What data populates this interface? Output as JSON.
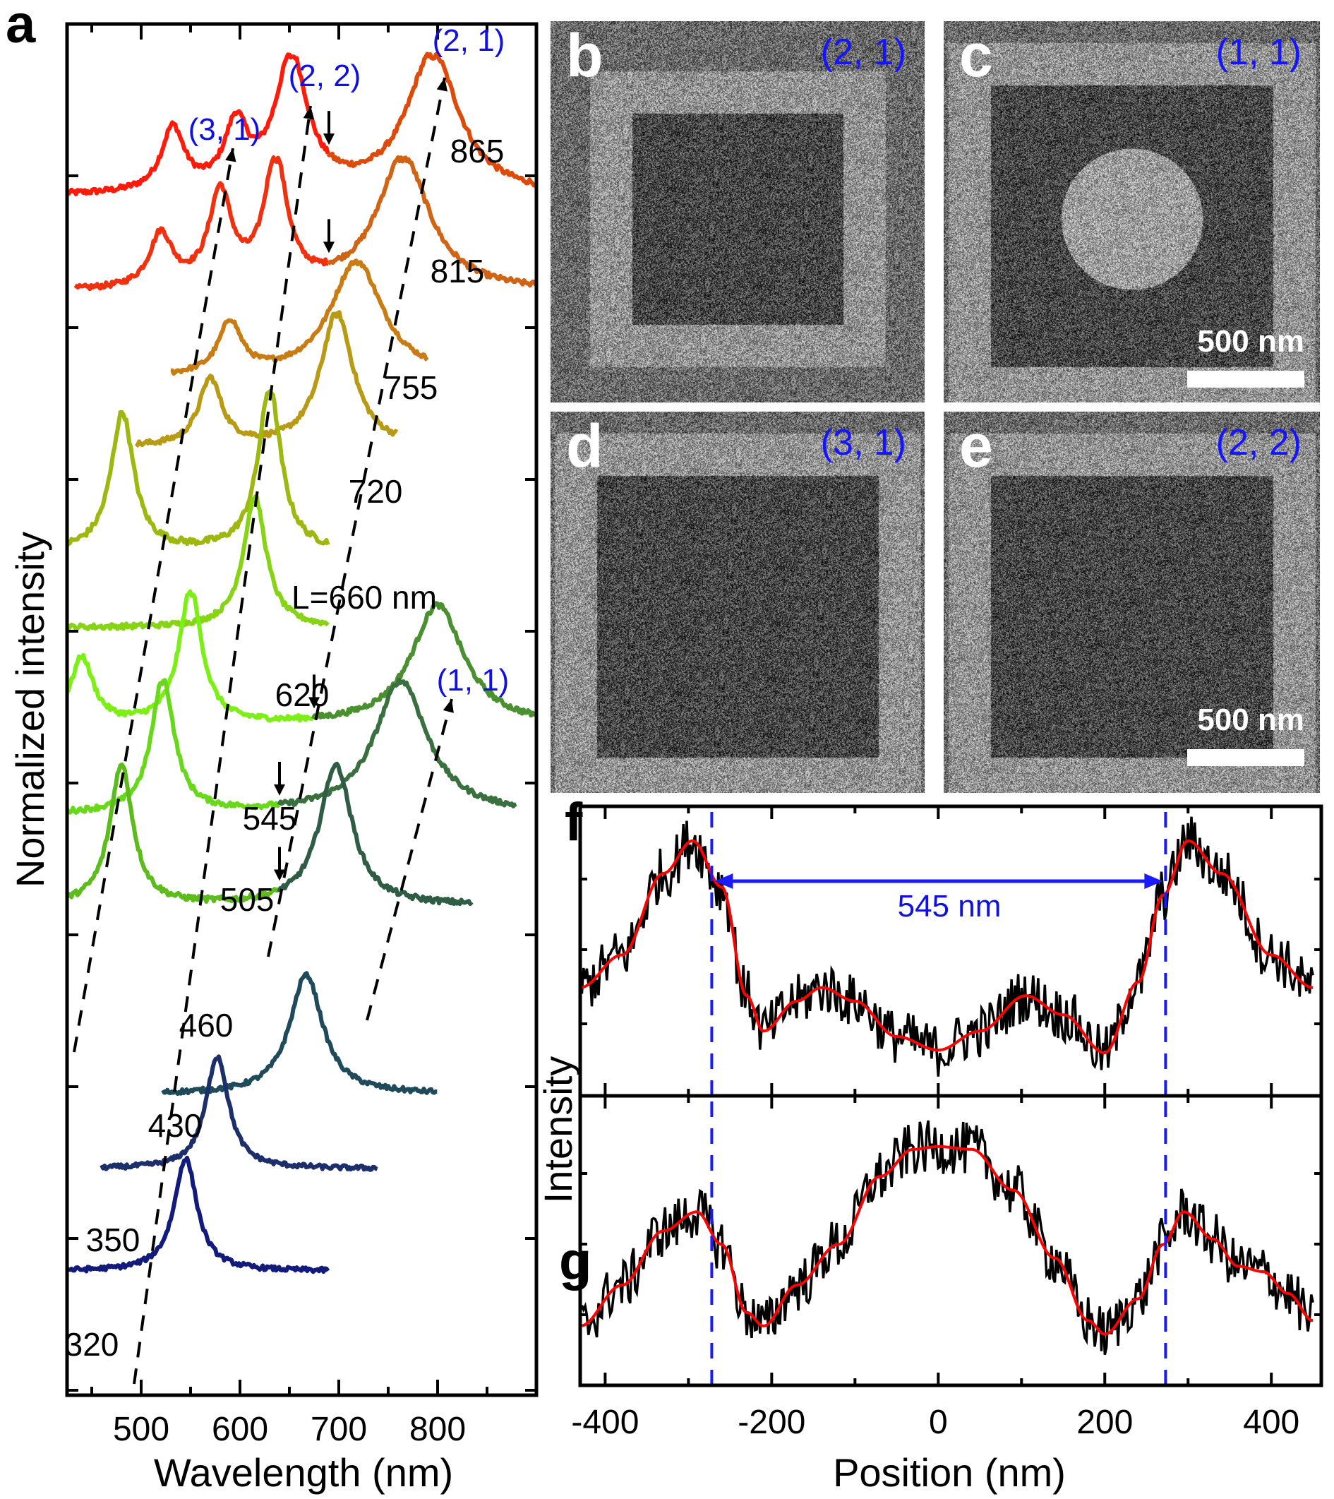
{
  "figure": {
    "panel_a": {
      "letter": "a",
      "xlabel": "Wavelength (nm)",
      "ylabel": "Normalized intensity",
      "xticks": [
        "500",
        "600",
        "700",
        "800"
      ],
      "mode_labels": [
        "(3, 1)",
        "(2, 2)",
        "(2, 1)",
        "(1, 1)"
      ]
    },
    "panel_b": {
      "letter": "b",
      "mode": "(2, 1)"
    },
    "panel_c": {
      "letter": "c",
      "mode": "(1, 1)",
      "scalebar": "500 nm"
    },
    "panel_d": {
      "letter": "d",
      "mode": "(3, 1)"
    },
    "panel_e": {
      "letter": "e",
      "mode": "(2, 2)",
      "scalebar": "500 nm"
    },
    "panel_fg": {
      "letters": [
        "f",
        "g"
      ],
      "xlabel": "Position (nm)",
      "ylabel": "Intensity",
      "xticks": [
        "-400",
        "-200",
        "0",
        "200",
        "400"
      ],
      "annotation": "545 nm"
    }
  },
  "chart_data": [
    {
      "type": "line",
      "panel": "a",
      "title": "",
      "xlabel": "Wavelength (nm)",
      "ylabel": "Normalized intensity",
      "xlim": [
        425,
        900
      ],
      "xticks": [
        500,
        600,
        700,
        800
      ],
      "yticks_labeled": false,
      "grid": false,
      "legend": "none",
      "series": [
        {
          "name": "865",
          "label": "865",
          "color": "#ff1a0a",
          "x_range": [
            425,
            900
          ],
          "peaks": [
            [
              532,
              0.45
            ],
            [
              596,
              0.45
            ],
            [
              652,
              0.95
            ],
            [
              795,
              1.0
            ]
          ],
          "split_at": 690,
          "color2": "#de4a0a",
          "arrow_at": 690
        },
        {
          "name": "815",
          "label": "815",
          "color": "#f0300e",
          "x_range": [
            433,
            900
          ],
          "peaks": [
            [
              520,
              0.4
            ],
            [
              580,
              0.7
            ],
            [
              636,
              0.95
            ],
            [
              765,
              1.0
            ]
          ],
          "split_at": 690,
          "color2": "#d06414",
          "arrow_at": 690
        },
        {
          "name": "755",
          "label": "755",
          "color": "#c97c14",
          "x_range": [
            530,
            790
          ],
          "peaks": [
            [
              590,
              0.45
            ],
            [
              718,
              1.0
            ]
          ]
        },
        {
          "name": "720",
          "label": "720",
          "color": "#b89a14",
          "x_range": [
            495,
            760
          ],
          "peaks": [
            [
              570,
              0.5
            ],
            [
              698,
              1.0
            ]
          ]
        },
        {
          "name": "660",
          "label": "L=660 nm",
          "color": "#9eb810",
          "x_range": [
            425,
            690
          ],
          "peaks": [
            [
              481,
              0.85
            ],
            [
              630,
              1.0
            ]
          ]
        },
        {
          "name": "620",
          "label": "620",
          "color": "#86d414",
          "x_range": [
            425,
            690
          ],
          "peaks": [
            [
              615,
              1.0
            ]
          ]
        },
        {
          "name": "545",
          "label": "545",
          "color": "#7cf014",
          "x_range": [
            425,
            900
          ],
          "peaks": [
            [
              440,
              0.5
            ],
            [
              550,
              1.0
            ],
            [
              800,
              0.9
            ]
          ],
          "split_at": 675,
          "color2": "#4a9030",
          "arrow_at": 675
        },
        {
          "name": "505",
          "label": "505",
          "color": "#68d81a",
          "x_range": [
            425,
            880
          ],
          "peaks": [
            [
              522,
              1.0
            ],
            [
              763,
              1.0
            ]
          ],
          "split_at": 640,
          "color2": "#3a7040",
          "arrow_at": 640
        },
        {
          "name": "460",
          "label": "460",
          "color": "#5cbc1c",
          "x_range": [
            425,
            835
          ],
          "peaks": [
            [
              480,
              1.0
            ],
            [
              697,
              1.0
            ]
          ],
          "split_at": 640,
          "color2": "#2f5c44",
          "arrow_at": 640
        },
        {
          "name": "430",
          "label": "430",
          "color": "#1f4a5a",
          "x_range": [
            522,
            800
          ],
          "peaks": [
            [
              667,
              1.0
            ]
          ]
        },
        {
          "name": "350",
          "label": "350",
          "color": "#1c2f6a",
          "x_range": [
            460,
            740
          ],
          "peaks": [
            [
              577,
              1.0
            ]
          ]
        },
        {
          "name": "320",
          "label": "320",
          "color": "#121a7c",
          "x_range": [
            425,
            690
          ],
          "peaks": [
            [
              545,
              1.0
            ]
          ]
        }
      ],
      "guide_lines": [
        {
          "mode": "(3, 1)",
          "style": "dashed-arrow"
        },
        {
          "mode": "(2, 2)",
          "style": "dashed-arrow"
        },
        {
          "mode": "(2, 1)",
          "style": "dashed-arrow"
        },
        {
          "mode": "(1, 1)",
          "style": "dashed-arrow"
        }
      ]
    },
    {
      "type": "line",
      "panel": "f",
      "xlabel": "Position (nm)",
      "ylabel": "Intensity",
      "xlim": [
        -430,
        460
      ],
      "xticks": [
        -400,
        -200,
        0,
        200,
        400
      ],
      "series": [
        {
          "name": "raw",
          "color": "#000000"
        },
        {
          "name": "fit",
          "color": "#ff0000",
          "points": [
            [
              -430,
              0.38
            ],
            [
              -380,
              0.5
            ],
            [
              -330,
              0.8
            ],
            [
              -295,
              0.92
            ],
            [
              -260,
              0.75
            ],
            [
              -230,
              0.35
            ],
            [
              -210,
              0.22
            ],
            [
              -170,
              0.33
            ],
            [
              -140,
              0.38
            ],
            [
              -100,
              0.33
            ],
            [
              -50,
              0.2
            ],
            [
              0,
              0.15
            ],
            [
              50,
              0.22
            ],
            [
              105,
              0.35
            ],
            [
              150,
              0.28
            ],
            [
              200,
              0.14
            ],
            [
              240,
              0.4
            ],
            [
              270,
              0.72
            ],
            [
              300,
              0.92
            ],
            [
              340,
              0.8
            ],
            [
              400,
              0.5
            ],
            [
              450,
              0.38
            ]
          ]
        }
      ],
      "vlines": [
        -272,
        273
      ],
      "annotation": {
        "text": "545 nm",
        "from": -272,
        "to": 273
      }
    },
    {
      "type": "line",
      "panel": "g",
      "xlabel": "Position (nm)",
      "ylabel": "Intensity",
      "xlim": [
        -430,
        460
      ],
      "xticks": [
        -400,
        -200,
        0,
        200,
        400
      ],
      "series": [
        {
          "name": "raw",
          "color": "#000000"
        },
        {
          "name": "fit",
          "color": "#ff0000",
          "points": [
            [
              -430,
              0.2
            ],
            [
              -380,
              0.35
            ],
            [
              -330,
              0.55
            ],
            [
              -290,
              0.62
            ],
            [
              -260,
              0.5
            ],
            [
              -230,
              0.25
            ],
            [
              -210,
              0.2
            ],
            [
              -170,
              0.35
            ],
            [
              -120,
              0.5
            ],
            [
              -70,
              0.75
            ],
            [
              -30,
              0.85
            ],
            [
              0,
              0.86
            ],
            [
              40,
              0.85
            ],
            [
              90,
              0.7
            ],
            [
              140,
              0.45
            ],
            [
              180,
              0.22
            ],
            [
              200,
              0.17
            ],
            [
              240,
              0.3
            ],
            [
              270,
              0.5
            ],
            [
              295,
              0.62
            ],
            [
              330,
              0.52
            ],
            [
              360,
              0.42
            ],
            [
              390,
              0.4
            ],
            [
              420,
              0.32
            ],
            [
              450,
              0.22
            ]
          ]
        }
      ],
      "vlines": [
        -272,
        273
      ]
    }
  ]
}
